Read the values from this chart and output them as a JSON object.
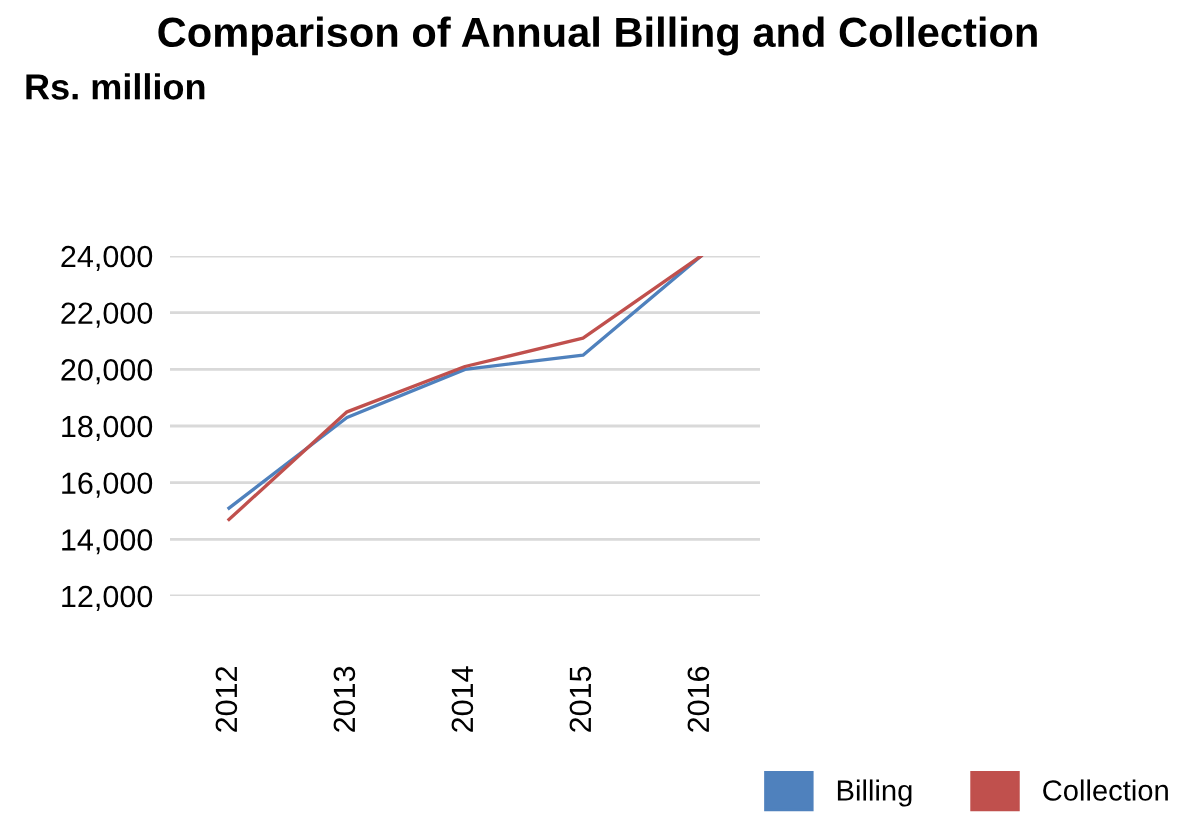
{
  "chart_data": {
    "type": "line",
    "title": "Comparison of Annual Billing and Collection",
    "ylabel": "Rs. million",
    "categories": [
      "2012",
      "2013",
      "2014",
      "2015",
      "2016"
    ],
    "series": [
      {
        "name": "Billing",
        "color": "#4f81bd",
        "values": [
          15100,
          18300,
          20000,
          20500,
          24000
        ]
      },
      {
        "name": "Collection",
        "color": "#c0504d",
        "values": [
          14700,
          18500,
          20100,
          21100,
          24000
        ]
      }
    ],
    "ylim": [
      12000,
      24000
    ],
    "yticks": [
      {
        "value": 12000,
        "label": "12,000"
      },
      {
        "value": 14000,
        "label": "14,000"
      },
      {
        "value": 16000,
        "label": "16,000"
      },
      {
        "value": 18000,
        "label": "18,000"
      },
      {
        "value": 20000,
        "label": "20,000"
      },
      {
        "value": 22000,
        "label": "22,000"
      },
      {
        "value": 24000,
        "label": "24,000"
      }
    ],
    "grid": "y",
    "legend": "bottom right"
  }
}
